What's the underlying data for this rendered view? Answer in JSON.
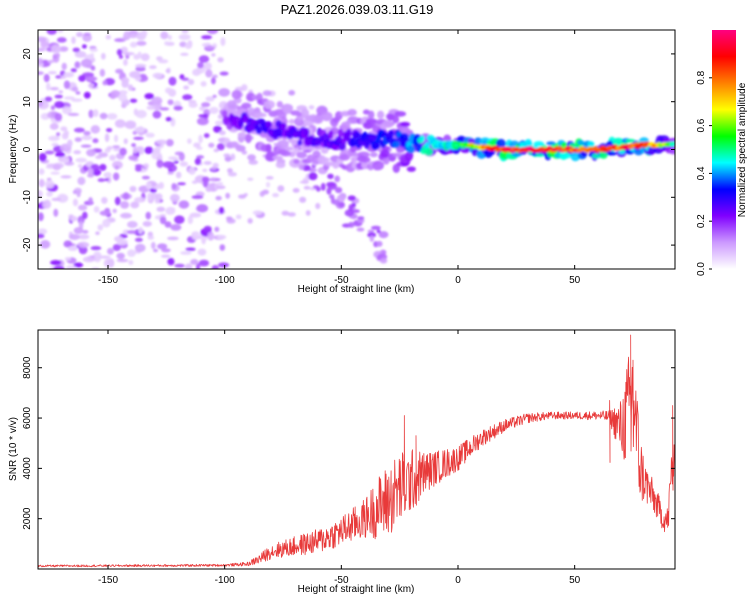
{
  "title": "PAZ1.2026.039.03.11.G19",
  "colors": {
    "snr_line": "#e83a3a",
    "axis": "#000000",
    "ribbon_low": "#e3ccff",
    "ribbon_mid": "#7b22f0",
    "ribbon_high": "#ff0050"
  },
  "chart_data": [
    {
      "type": "heatmap",
      "name": "spectrogram",
      "xlabel": "Height of straight line (km)",
      "ylabel": "Frequency (Hz)",
      "xlim": [
        -180,
        93
      ],
      "ylim": [
        -25,
        25
      ],
      "xticks": [
        -150,
        -100,
        -50,
        0,
        50
      ],
      "yticks": [
        -20,
        -10,
        0,
        10,
        20
      ],
      "zlim": [
        0,
        1
      ],
      "colorbar": {
        "label": "Normalized spectral amplitude",
        "ticks": [
          0.0,
          0.2,
          0.4,
          0.6,
          0.8
        ],
        "stops": [
          "#ffffff",
          "#cc99ff",
          "#8000ff",
          "#0000ff",
          "#00ffff",
          "#00ff00",
          "#ffff00",
          "#ff8000",
          "#ff0000",
          "#ff0080"
        ]
      },
      "ridge": {
        "description": "dominant frequency ridge",
        "x": [
          -100,
          -85,
          -70,
          -55,
          -40,
          -25,
          -15,
          0,
          20,
          40,
          60,
          80,
          93
        ],
        "freq_hz": [
          6,
          5,
          3,
          2,
          2,
          2,
          1,
          1,
          0,
          0,
          0,
          1,
          1
        ],
        "amplitude": [
          0.2,
          0.3,
          0.25,
          0.25,
          0.3,
          0.35,
          0.45,
          0.55,
          0.95,
          0.95,
          0.85,
          0.9,
          0.5
        ]
      },
      "noise_region": {
        "x": [
          -180,
          -100
        ],
        "freq_hz": [
          -25,
          25
        ],
        "amplitude": [
          0.05,
          0.2
        ]
      },
      "descending_branch": {
        "x": [
          -65,
          -30
        ],
        "freq_hz": [
          -2,
          -22
        ],
        "amplitude": [
          0.1,
          0.2
        ]
      }
    },
    {
      "type": "line",
      "name": "snr",
      "xlabel": "Height of straight line (km)",
      "ylabel": "SNR (10 * v/v)",
      "xlim": [
        -180,
        93
      ],
      "ylim": [
        0,
        9500
      ],
      "xticks": [
        -150,
        -100,
        -50,
        0,
        50
      ],
      "yticks": [
        2000,
        4000,
        6000,
        8000
      ],
      "x": [
        -180,
        -150,
        -120,
        -100,
        -90,
        -85,
        -80,
        -70,
        -60,
        -50,
        -40,
        -35,
        -30,
        -25,
        -20,
        -15,
        -10,
        -5,
        0,
        10,
        20,
        30,
        40,
        50,
        60,
        65,
        70,
        72,
        75,
        78,
        80,
        85,
        88,
        90,
        92,
        93
      ],
      "y": [
        120,
        130,
        140,
        150,
        200,
        400,
        700,
        900,
        1100,
        1500,
        2000,
        2400,
        2700,
        3200,
        3500,
        3800,
        4000,
        4200,
        4400,
        5200,
        5700,
        6000,
        6100,
        6100,
        6100,
        6050,
        5600,
        6000,
        7000,
        4000,
        3500,
        2600,
        2000,
        1900,
        4500,
        3500
      ],
      "noise_amp": [
        40,
        40,
        45,
        45,
        80,
        200,
        300,
        400,
        500,
        600,
        800,
        1200,
        1500,
        1500,
        1300,
        900,
        700,
        600,
        500,
        350,
        250,
        200,
        150,
        150,
        180,
        250,
        1200,
        2000,
        2500,
        1500,
        900,
        600,
        500,
        600,
        1500,
        800
      ],
      "spikes": [
        {
          "x": -23,
          "y": 6100
        },
        {
          "x": -18,
          "y": 5300
        },
        {
          "x": 65,
          "y": 6700
        },
        {
          "x": 74,
          "y": 9300
        },
        {
          "x": 75,
          "y": 8300
        },
        {
          "x": 92,
          "y": 6500
        }
      ]
    }
  ]
}
